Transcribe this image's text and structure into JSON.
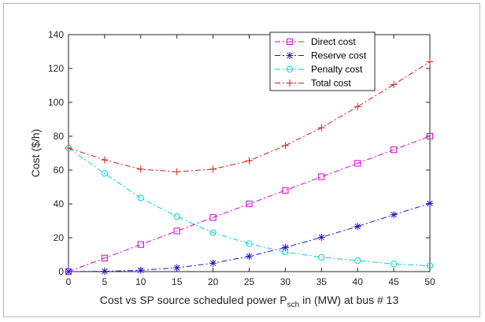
{
  "chart_data": {
    "type": "line",
    "title": "",
    "x": [
      0,
      5,
      10,
      15,
      20,
      25,
      30,
      35,
      40,
      45,
      50
    ],
    "series": [
      {
        "name": "Direct cost",
        "color": "#d400d4",
        "marker": "square",
        "values": [
          0,
          8,
          16,
          24,
          32,
          40,
          48,
          56,
          64,
          72,
          80
        ]
      },
      {
        "name": "Reserve cost",
        "color": "#1a1acc",
        "marker": "star",
        "values": [
          0,
          0.2,
          0.8,
          2.3,
          5.0,
          9.0,
          14.3,
          20.3,
          26.7,
          33.6,
          40.3
        ]
      },
      {
        "name": "Penalty cost",
        "color": "#00d4d4",
        "marker": "circle",
        "values": [
          73,
          58,
          43.5,
          32.5,
          23,
          16.5,
          11.5,
          8.5,
          6.5,
          4.5,
          3.5
        ]
      },
      {
        "name": "Total cost",
        "color": "#d81a1a",
        "marker": "plus",
        "values": [
          73,
          66,
          60.5,
          59,
          60.5,
          65.5,
          74.5,
          85,
          97.5,
          110.5,
          124
        ]
      }
    ],
    "xlim": [
      0,
      50
    ],
    "ylim": [
      0,
      140
    ],
    "xticks": [
      "0",
      "5",
      "10",
      "15",
      "20",
      "25",
      "30",
      "35",
      "40",
      "45",
      "50"
    ],
    "yticks": [
      "0",
      "20",
      "40",
      "60",
      "80",
      "100",
      "120",
      "140"
    ],
    "ylabel": "Cost ($/h)",
    "xlabel": {
      "prefix": "Cost vs SP source scheduled power P",
      "subscript": "sch",
      "suffix": " in (MW) at bus # 13"
    },
    "legend_position": "top-right",
    "grid": false
  }
}
